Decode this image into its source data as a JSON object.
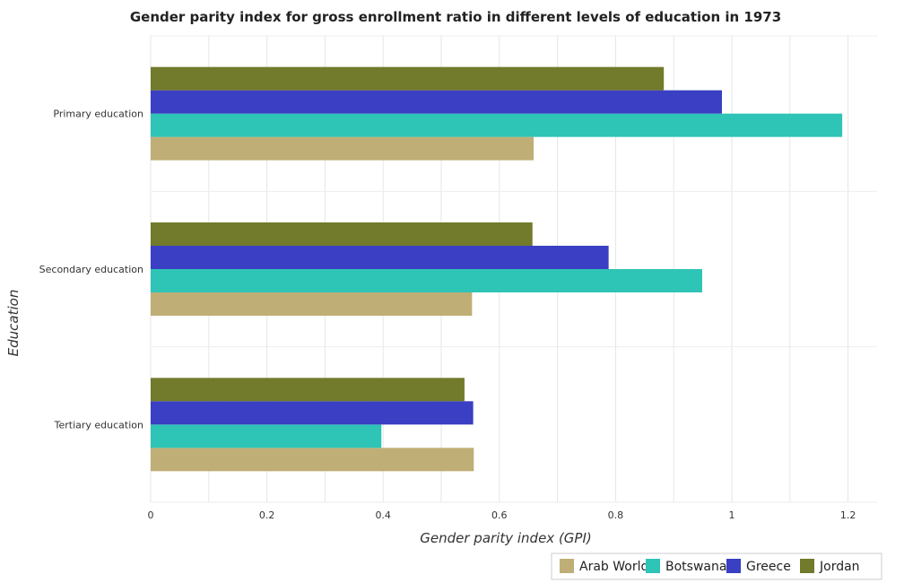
{
  "chart_data": {
    "type": "bar",
    "orientation": "horizontal",
    "title": "Gender parity index for gross enrollment ratio in different levels of education in 1973",
    "xlabel": "Gender parity index (GPI)",
    "ylabel": "Education",
    "categories": [
      "Primary education",
      "Secondary education",
      "Tertiary education"
    ],
    "xlim": [
      0,
      1.25
    ],
    "xticks": [
      0,
      0.2,
      0.4,
      0.6,
      0.8,
      1.0,
      1.2
    ],
    "xtick_labels": [
      "0",
      "0.2",
      "0.4",
      "0.6",
      "0.8",
      "1",
      "1.2"
    ],
    "grid": true,
    "legend_position": "bottom-right",
    "series": [
      {
        "name": "Arab World",
        "color": "#bfae76",
        "values": [
          0.659,
          0.553,
          0.556
        ]
      },
      {
        "name": "Botswana",
        "color": "#2ec4b6",
        "values": [
          1.19,
          0.949,
          0.397
        ]
      },
      {
        "name": "Greece",
        "color": "#3a3fc4",
        "values": [
          0.983,
          0.788,
          0.555
        ]
      },
      {
        "name": "Jordan",
        "color": "#727a2c",
        "values": [
          0.883,
          0.657,
          0.54
        ]
      }
    ]
  }
}
